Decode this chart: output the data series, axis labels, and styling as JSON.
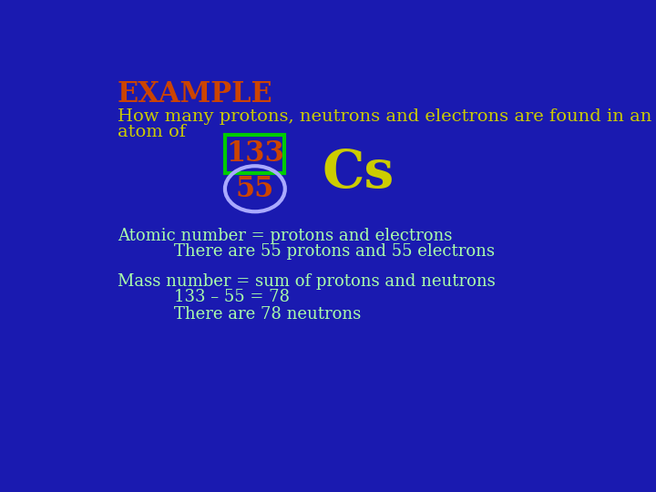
{
  "background_color": "#1a1ab0",
  "title": "EXAMPLE",
  "title_color": "#cc4400",
  "title_fontsize": 22,
  "intro_text_line1": "How many protons, neutrons and electrons are found in an",
  "intro_text_line2": "atom of",
  "intro_color": "#cccc00",
  "intro_fontsize": 14,
  "mass_number": "133",
  "atomic_number": "55",
  "element_symbol": "Cs",
  "number_color": "#cc4400",
  "element_color": "#cccc00",
  "rect_color": "#00cc00",
  "circle_color": "#aaaaff",
  "line1": "Atomic number = protons and electrons",
  "line2": "    There are 55 protons and 55 electrons",
  "line3": "Mass number = sum of protons and neutrons",
  "line4": "    133 – 55 = 78",
  "line5": "    There are 78 neutrons",
  "body_color": "#aaffaa",
  "body_fontsize": 13,
  "mass_fontsize": 22,
  "atomic_fontsize": 22,
  "element_fontsize": 42
}
